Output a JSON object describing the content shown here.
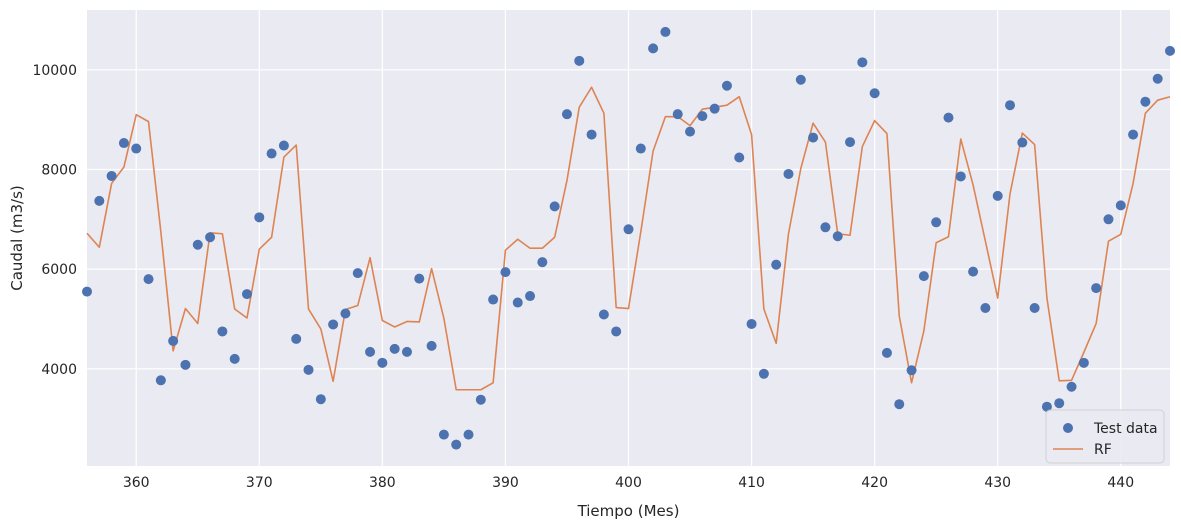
{
  "chart_data": {
    "type": "line",
    "title": "",
    "xlabel": "Tiempo (Mes)",
    "ylabel": "Caudal (m3/s)",
    "xlim": [
      356,
      444
    ],
    "ylim": [
      2050,
      11200
    ],
    "xticks": [
      360,
      370,
      380,
      390,
      400,
      410,
      420,
      430,
      440
    ],
    "yticks": [
      4000,
      6000,
      8000,
      10000
    ],
    "grid": true,
    "legend_position": "lower-right",
    "x": [
      356,
      357,
      358,
      359,
      360,
      361,
      362,
      363,
      364,
      365,
      366,
      367,
      368,
      369,
      370,
      371,
      372,
      373,
      374,
      375,
      376,
      377,
      378,
      379,
      380,
      381,
      382,
      383,
      384,
      385,
      386,
      387,
      388,
      389,
      390,
      391,
      392,
      393,
      394,
      395,
      396,
      397,
      398,
      399,
      400,
      401,
      402,
      403,
      404,
      405,
      406,
      407,
      408,
      409,
      410,
      411,
      412,
      413,
      414,
      415,
      416,
      417,
      418,
      419,
      420,
      421,
      422,
      423,
      424,
      425,
      426,
      427,
      428,
      429,
      430,
      431,
      432,
      433,
      434,
      435,
      436,
      437,
      438,
      439,
      440,
      441,
      442,
      443,
      444
    ],
    "series": [
      {
        "name": "Test data",
        "style": "scatter",
        "color": "#4c72b0",
        "values": [
          5550,
          7370,
          7870,
          8530,
          8420,
          5800,
          3770,
          4560,
          4080,
          6490,
          6640,
          4750,
          4200,
          5500,
          7040,
          8320,
          8480,
          4600,
          3980,
          3390,
          4890,
          5110,
          5920,
          4340,
          4120,
          4400,
          4340,
          5810,
          4460,
          2680,
          2480,
          2680,
          3380,
          5390,
          5940,
          5330,
          5460,
          6140,
          7260,
          9110,
          10180,
          8700,
          5090,
          4750,
          6800,
          8420,
          10430,
          10760,
          9110,
          8760,
          9070,
          9220,
          9680,
          8240,
          4900,
          3900,
          6090,
          7910,
          9800,
          8640,
          6840,
          6660,
          8550,
          10150,
          9530,
          4320,
          3290,
          3970,
          5860,
          6940,
          9040,
          7860,
          5950,
          5220,
          7470,
          9290,
          8540,
          5220,
          3240,
          3310,
          3640,
          4120,
          5620,
          7000,
          7280,
          8700,
          9360,
          9820,
          10380
        ]
      },
      {
        "name": "RF",
        "style": "line",
        "color": "#dd8452",
        "values": [
          6720,
          6440,
          7720,
          8050,
          9100,
          8960,
          6750,
          4360,
          5210,
          4910,
          6730,
          6710,
          5200,
          5020,
          6400,
          6640,
          8250,
          8490,
          5200,
          4800,
          3750,
          5190,
          5270,
          6230,
          4970,
          4840,
          4950,
          4940,
          6010,
          5010,
          3580,
          3580,
          3580,
          3720,
          6380,
          6600,
          6420,
          6420,
          6640,
          7780,
          9250,
          9650,
          9130,
          5230,
          5210,
          6750,
          8370,
          9060,
          9060,
          8880,
          9210,
          9250,
          9290,
          9460,
          8700,
          5200,
          4510,
          6710,
          8020,
          8930,
          8550,
          6710,
          6680,
          8460,
          8980,
          8720,
          5060,
          3720,
          4760,
          6530,
          6650,
          8610,
          7690,
          6560,
          5420,
          7510,
          8730,
          8500,
          5420,
          3760,
          3770,
          4330,
          4910,
          6560,
          6700,
          7720,
          9130,
          9390,
          9460
        ]
      }
    ]
  }
}
